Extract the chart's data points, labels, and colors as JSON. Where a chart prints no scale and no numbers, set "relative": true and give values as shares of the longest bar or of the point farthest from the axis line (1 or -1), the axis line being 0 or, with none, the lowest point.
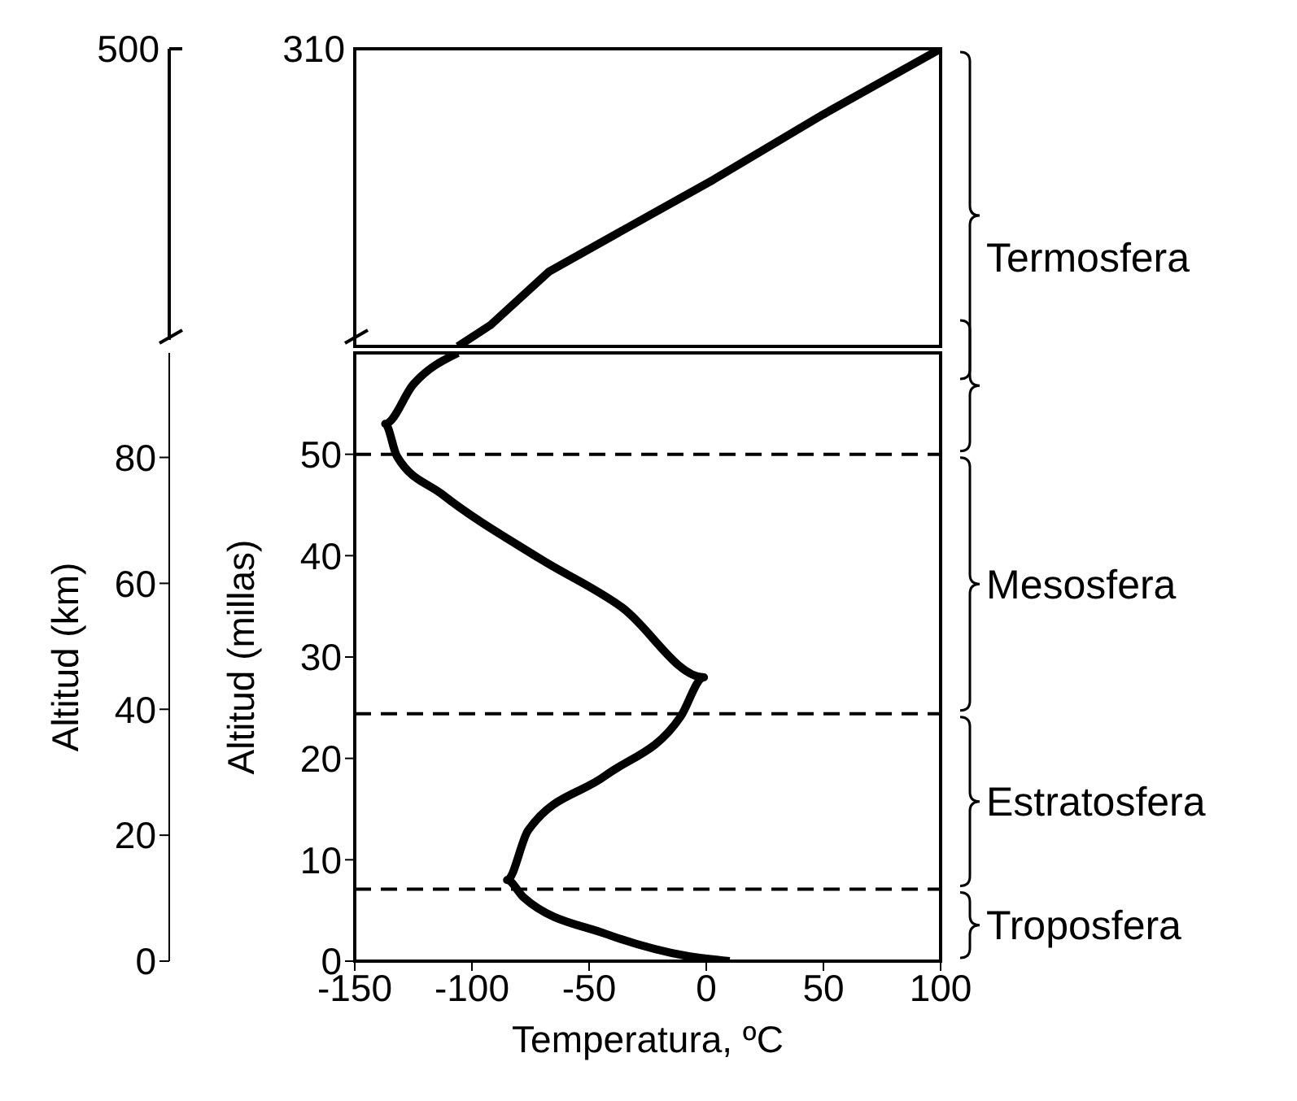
{
  "chart_data": [
    {
      "type": "line",
      "relative": true,
      "xlim": [
        -150,
        100
      ],
      "tick_labels": false,
      "marker": "none",
      "line_style": "solid",
      "series": [
        {
          "color": "#000000",
          "x": [
            -106,
            -92,
            -67,
            3,
            50,
            100
          ],
          "values": [
            0,
            0.072,
            0.252,
            0.56,
            0.78,
            1
          ]
        }
      ],
      "annotations": [
        "500",
        "310",
        "Termosfera"
      ]
    },
    {
      "type": "line",
      "xlabel": "Temperatura, ºC",
      "ylabel": "Altitud (millas)",
      "y2label": "Altitud (km)",
      "xlim": [
        -150,
        100
      ],
      "xticks": [
        -150,
        -100,
        -50,
        0,
        50,
        100
      ],
      "ylim": [
        0,
        60
      ],
      "yticks": [
        0,
        10,
        20,
        30,
        40,
        50
      ],
      "y2lim": [
        0,
        96.6
      ],
      "y2ticks": [
        0,
        20,
        40,
        60,
        80
      ],
      "marker": "none",
      "line_style": "solid",
      "series": [
        {
          "color": "#000000",
          "x": [
            10,
            -8,
            -43,
            -78,
            -85,
            -76,
            -43,
            -11,
            -1,
            -36,
            -71,
            -113,
            -132,
            -137,
            -125,
            -106
          ],
          "values": [
            0,
            0.5,
            2.7,
            6.3,
            8,
            12.9,
            18.3,
            24.1,
            28,
            34.9,
            39.7,
            46.1,
            49.8,
            53,
            56.9,
            60
          ]
        }
      ],
      "ref_lines": [
        {
          "axis": "y",
          "value": 50,
          "line_style": "dashed"
        },
        {
          "axis": "y",
          "value": 24.4,
          "line_style": "dashed"
        },
        {
          "axis": "y",
          "value": 7.1,
          "line_style": "dashed"
        }
      ],
      "annotations": [
        "Mesosfera",
        "Estratosfera",
        "Troposfera"
      ]
    }
  ]
}
